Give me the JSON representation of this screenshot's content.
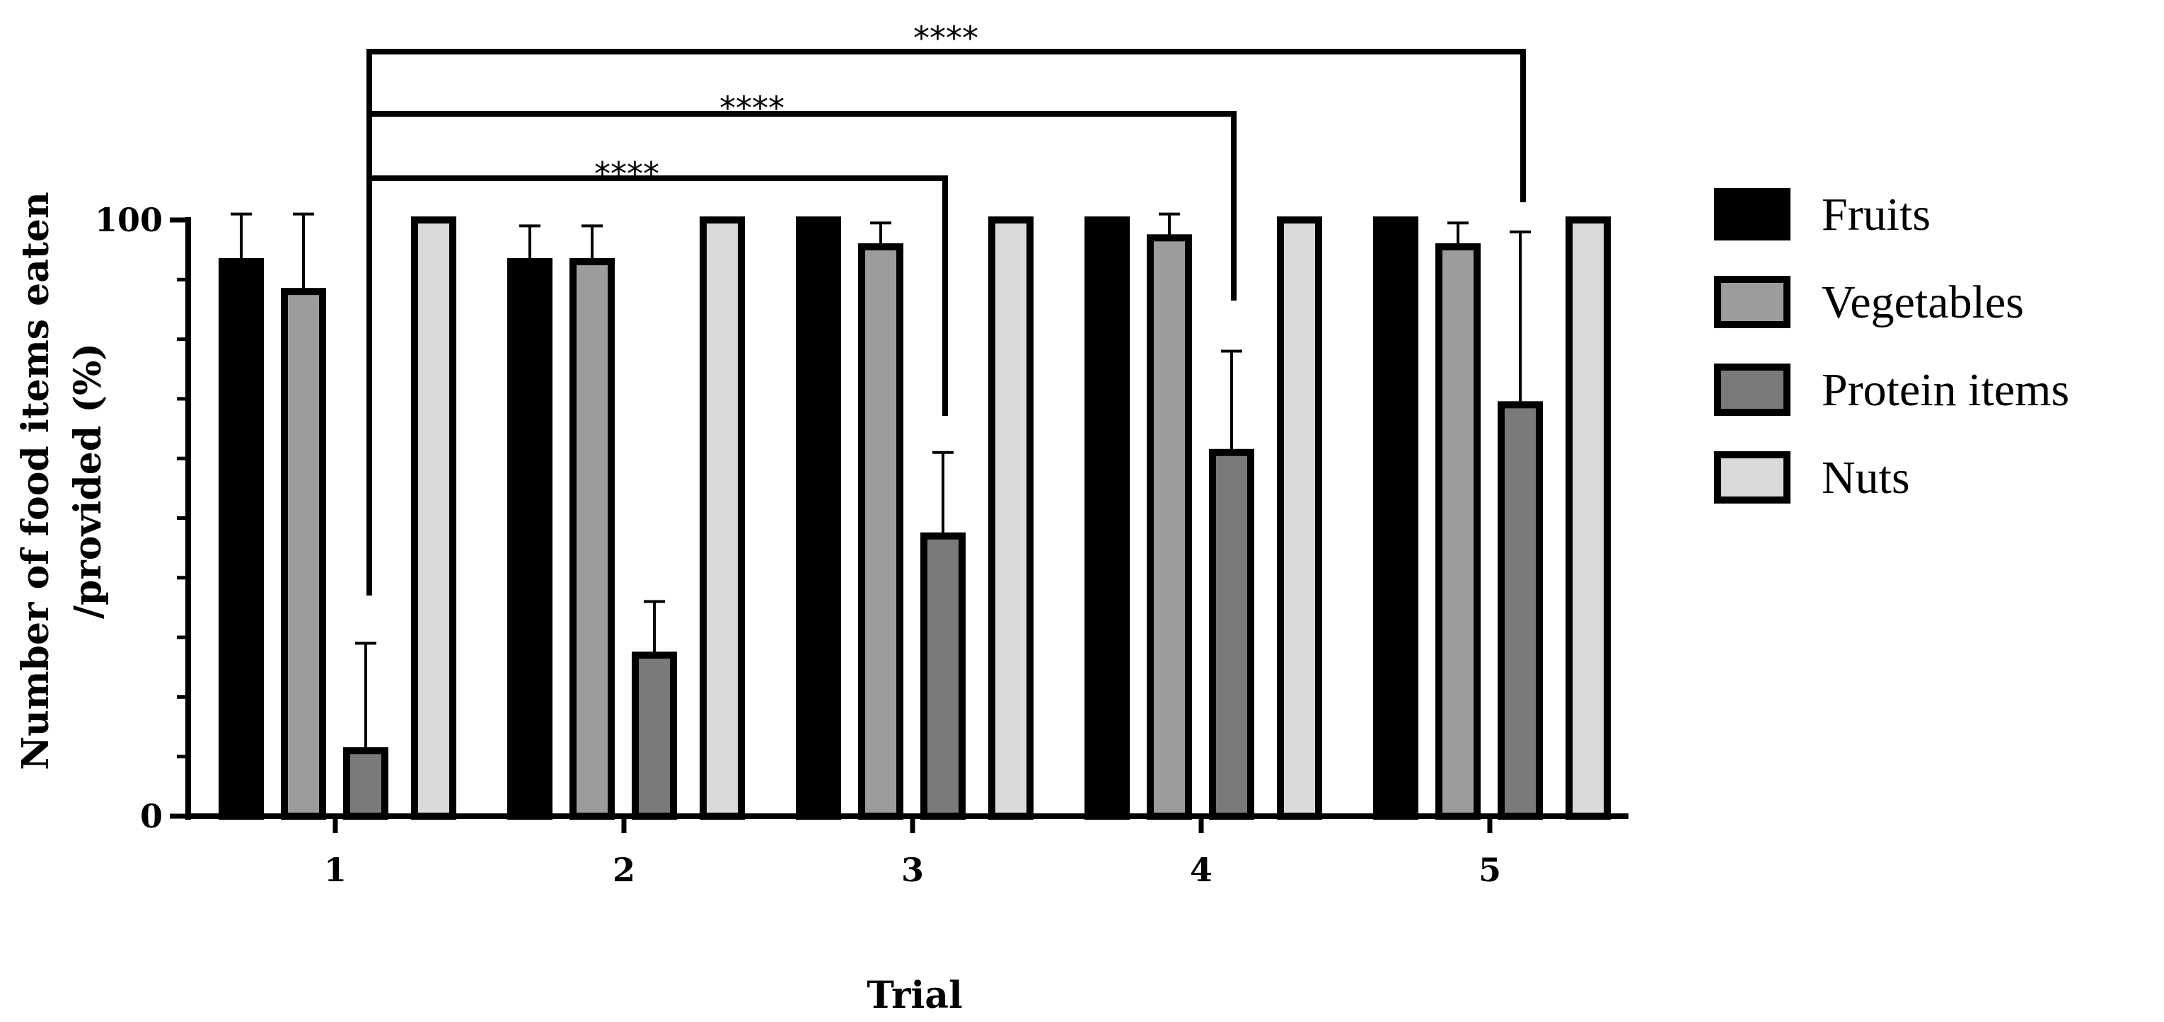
{
  "chart_data": {
    "type": "bar",
    "categories": [
      "1",
      "2",
      "3",
      "4",
      "5"
    ],
    "series": [
      {
        "name": "Fruits",
        "values": [
          93,
          93,
          100,
          100,
          100
        ],
        "errors": [
          8,
          6,
          0,
          0,
          0
        ],
        "color": "#000000"
      },
      {
        "name": "Vegetables",
        "values": [
          88,
          93,
          95.5,
          97,
          95.5
        ],
        "errors": [
          13,
          6,
          4,
          4,
          4
        ],
        "color": "#9c9c9e"
      },
      {
        "name": "Protein items",
        "values": [
          11,
          27,
          47,
          61,
          69
        ],
        "errors": [
          18,
          9,
          14,
          17,
          29
        ],
        "color": "#7a7a7a"
      },
      {
        "name": "Nuts",
        "values": [
          100,
          100,
          100,
          100,
          100
        ],
        "errors": [
          0,
          0,
          0,
          0,
          0
        ],
        "color": "#d9d9d9"
      }
    ],
    "xlabel": "Trial",
    "ylabel_line1": "Number of food items eaten",
    "ylabel_line2": "/provided (%)",
    "ylim": [
      0,
      100
    ],
    "y_tick_labels": [
      "0",
      "100"
    ],
    "y_minor_ticks": 10,
    "legend_position": "right",
    "significance": [
      {
        "from_trial": "1",
        "to_trial": "3",
        "label": "****"
      },
      {
        "from_trial": "1",
        "to_trial": "4",
        "label": "****"
      },
      {
        "from_trial": "1",
        "to_trial": "5",
        "label": "****"
      }
    ]
  }
}
